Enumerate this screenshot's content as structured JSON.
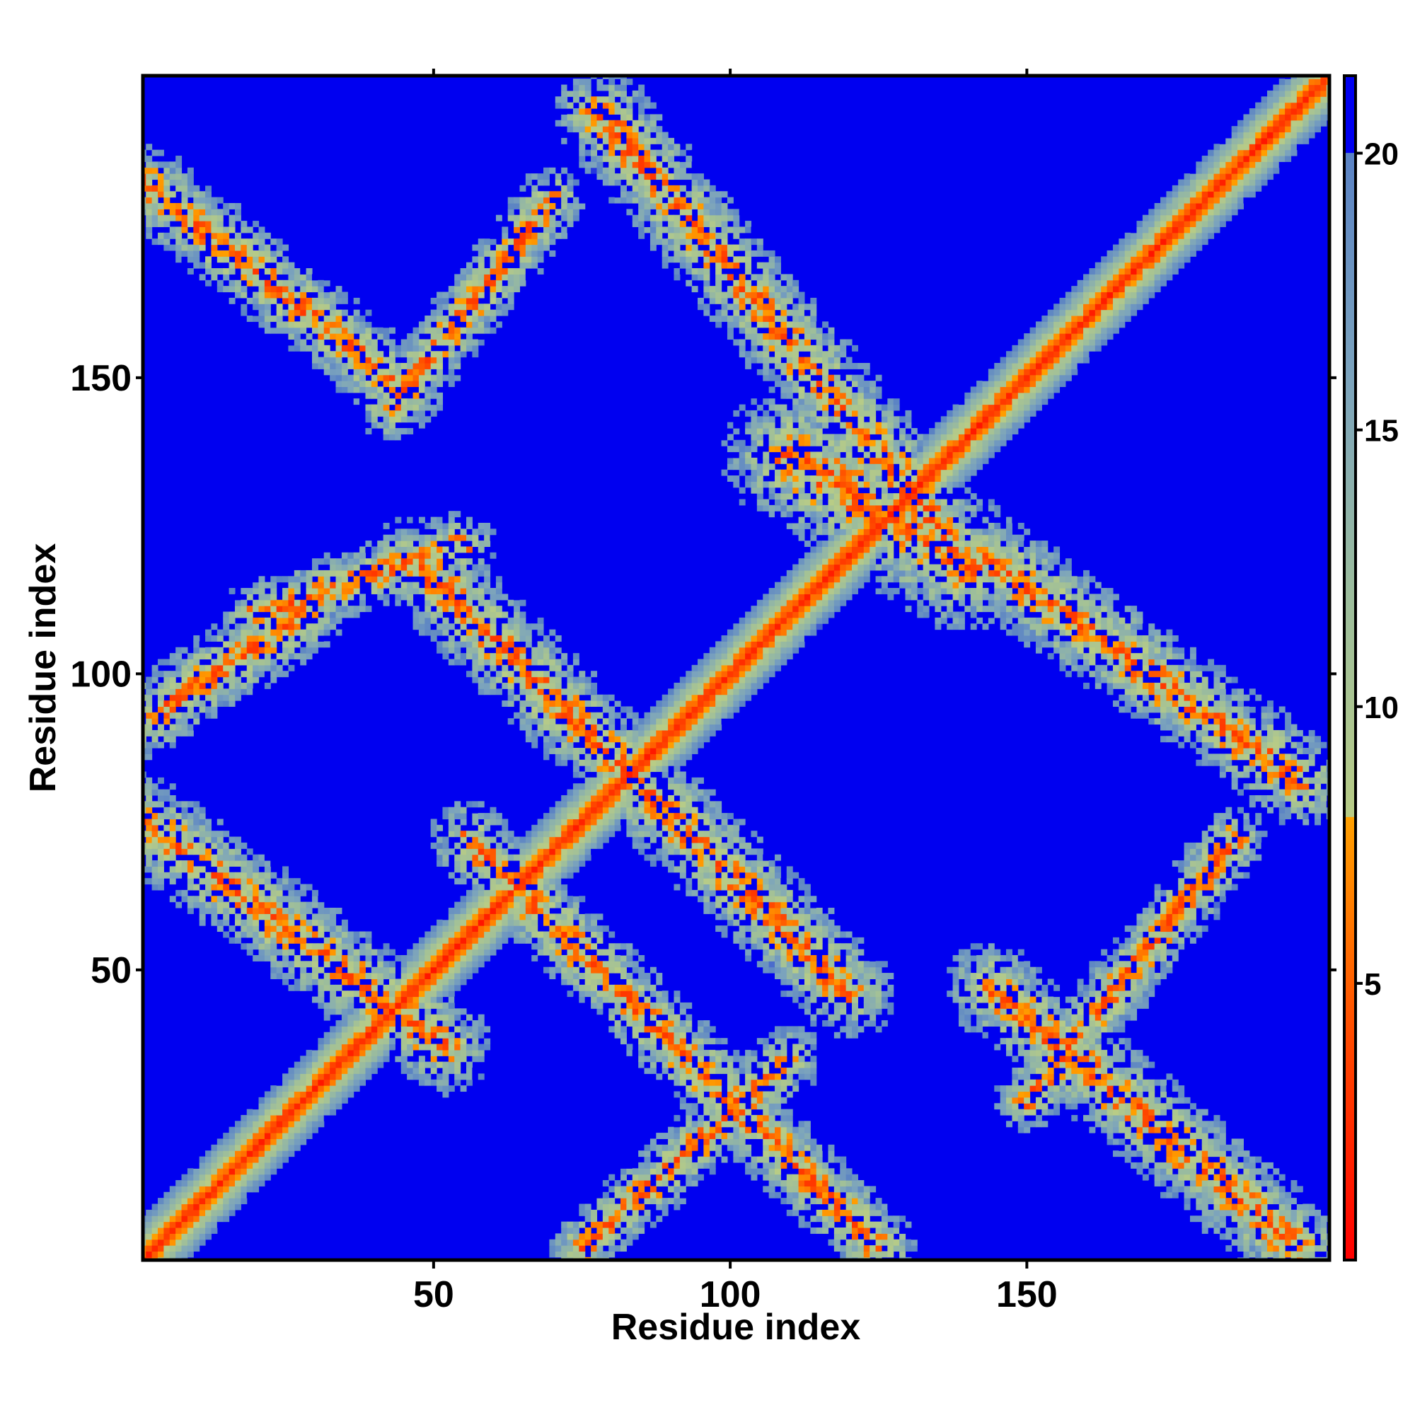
{
  "chart_data": {
    "type": "heatmap",
    "title": "",
    "xlabel": "Residue index",
    "ylabel": "Residue index",
    "xlim": [
      1,
      201
    ],
    "ylim": [
      1,
      201
    ],
    "x_ticks": [
      50,
      100,
      150
    ],
    "y_ticks": [
      50,
      100,
      150
    ],
    "colorbar": {
      "range": [
        0,
        21.4
      ],
      "ticks": [
        5,
        10,
        15,
        20
      ],
      "stops": [
        {
          "value": 0,
          "color": "#ff0000"
        },
        {
          "value": 4,
          "color": "#ff4a00"
        },
        {
          "value": 8,
          "color": "#ffa000"
        },
        {
          "value": 8.01,
          "color": "#b8cc86"
        },
        {
          "value": 12,
          "color": "#9cbd9c"
        },
        {
          "value": 16,
          "color": "#7ba3bd"
        },
        {
          "value": 20,
          "color": "#5a82c4"
        },
        {
          "value": 20.01,
          "color": "#0000f0"
        },
        {
          "value": 21.4,
          "color": "#0000f0"
        }
      ]
    },
    "background_color": "#0000f0",
    "contact_bands": [
      {
        "from": [
          1,
          1
        ],
        "to": [
          201,
          201
        ],
        "halfwidth": 5,
        "core": 1.8
      },
      {
        "from": [
          56,
          72
        ],
        "to": [
          125,
          3
        ],
        "halfwidth": 6,
        "core": 4
      },
      {
        "from": [
          1,
          183
        ],
        "to": [
          45,
          148
        ],
        "halfwidth": 6,
        "core": 4
      },
      {
        "from": [
          47,
          119
        ],
        "to": [
          120,
          46
        ],
        "halfwidth": 7,
        "core": 4
      },
      {
        "from": [
          78,
          195
        ],
        "to": [
          136,
          124
        ],
        "halfwidth": 7,
        "core": 4
      },
      {
        "from": [
          144,
          119
        ],
        "to": [
          196,
          82
        ],
        "halfwidth": 7,
        "core": 4
      },
      {
        "from": [
          144,
          47
        ],
        "to": [
          196,
          3
        ],
        "halfwidth": 7,
        "core": 4
      },
      {
        "from": [
          1,
          75
        ],
        "to": [
          52,
          37
        ],
        "halfwidth": 7,
        "core": 4
      },
      {
        "from": [
          20,
          110
        ],
        "to": [
          55,
          122
        ],
        "halfwidth": 5,
        "core": 3
      },
      {
        "from": [
          1,
          92
        ],
        "to": [
          28,
          110
        ],
        "halfwidth": 6,
        "core": 3
      },
      {
        "from": [
          43,
          145
        ],
        "to": [
          70,
          180
        ],
        "halfwidth": 5,
        "core": 3
      },
      {
        "from": [
          75,
          3
        ],
        "to": [
          110,
          35
        ],
        "halfwidth": 5,
        "core": 3
      },
      {
        "from": [
          150,
          28
        ],
        "to": [
          185,
          72
        ],
        "halfwidth": 5,
        "core": 3
      },
      {
        "from": [
          110,
          137
        ],
        "to": [
          140,
          118
        ],
        "halfwidth": 10,
        "core": 6
      }
    ]
  }
}
